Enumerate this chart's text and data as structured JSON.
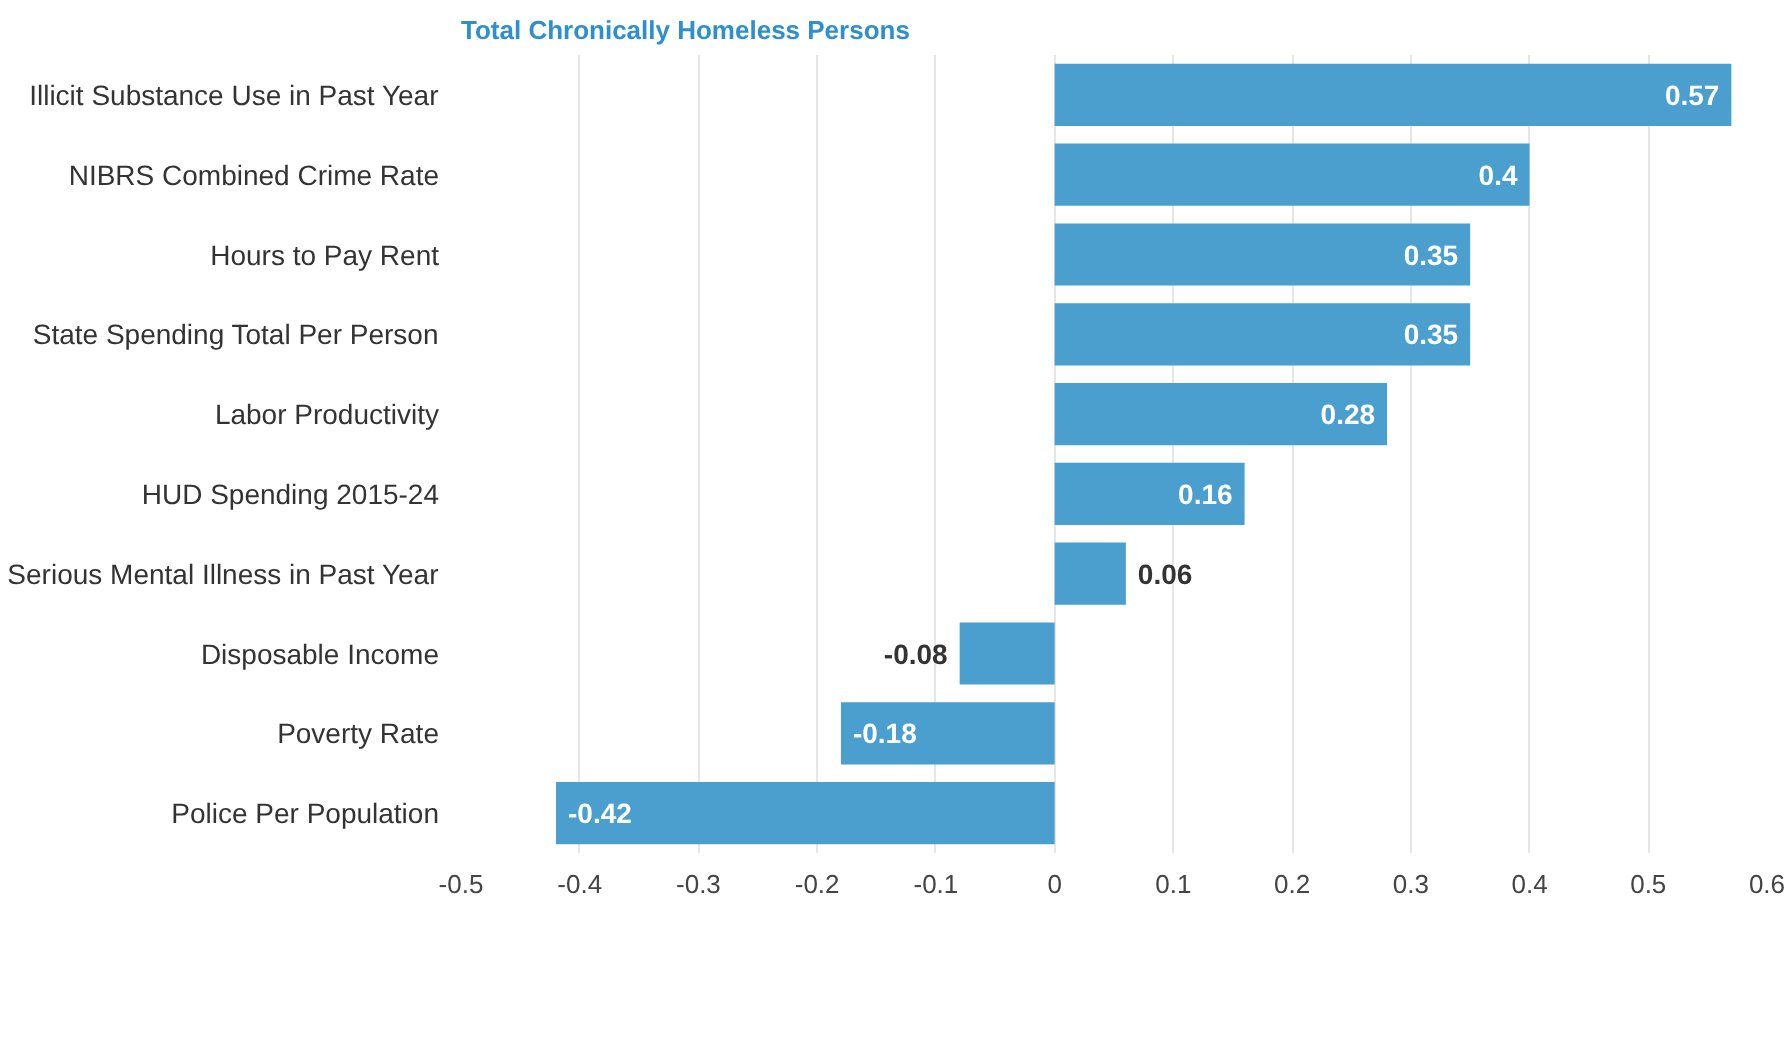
{
  "chart_data": {
    "type": "bar",
    "orientation": "horizontal",
    "title": "Total Chronically Homeless Persons",
    "categories": [
      "Illicit Substance Use in Past Year",
      "NIBRS Combined Crime Rate",
      "Hours to Pay Rent",
      "State Spending Total Per Person",
      "Labor Productivity",
      "HUD Spending 2015-24",
      "Serious Mental Illness in Past Year",
      "Disposable Income",
      "Poverty Rate",
      "Police Per Population"
    ],
    "values": [
      0.57,
      0.4,
      0.35,
      0.35,
      0.28,
      0.16,
      0.06,
      -0.08,
      -0.18,
      -0.42
    ],
    "color": "#4a9fcf",
    "data_labels": true,
    "grid": "x",
    "xlim": [
      -0.5,
      0.6
    ],
    "xticks": [
      -0.5,
      -0.4,
      -0.3,
      -0.2,
      -0.1,
      0,
      0.1,
      0.2,
      0.3,
      0.4,
      0.5,
      0.6
    ]
  }
}
